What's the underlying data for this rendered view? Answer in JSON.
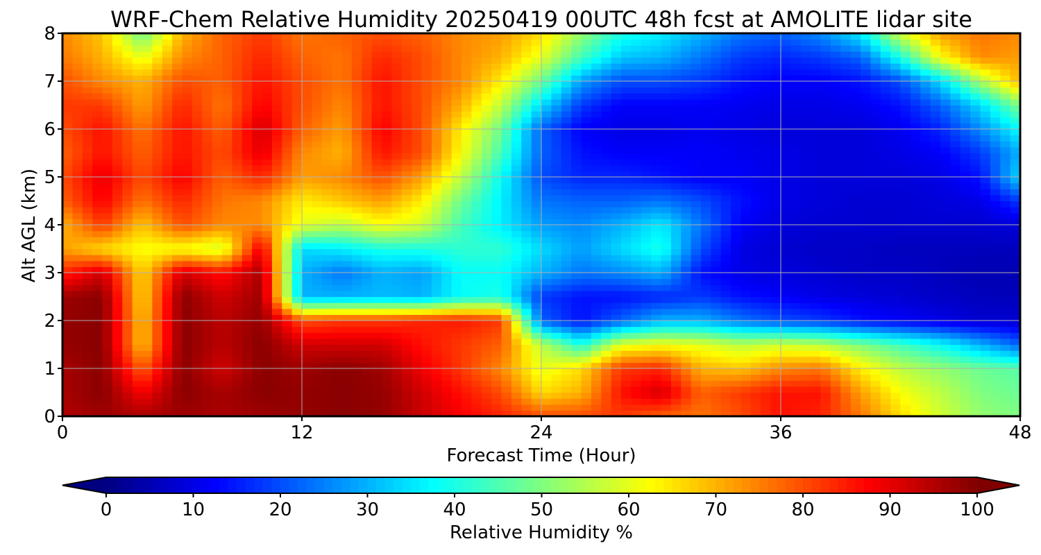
{
  "chart_data": {
    "type": "heatmap",
    "title": "WRF-Chem Relative Humidity 20250419 00UTC 48h fcst at AMOLITE lidar site",
    "xlabel": "Forecast Time (Hour)",
    "ylabel": "Alt AGL (km)",
    "xlim": [
      0,
      48
    ],
    "ylim": [
      0,
      8
    ],
    "x_ticks": [
      0,
      12,
      24,
      36,
      48
    ],
    "y_ticks": [
      0,
      1,
      2,
      3,
      4,
      5,
      6,
      7,
      8
    ],
    "grid": true,
    "colorbar": {
      "label": "Relative Humidity %",
      "range": [
        0,
        100
      ],
      "ticks": [
        0,
        10,
        20,
        30,
        40,
        50,
        60,
        70,
        80,
        90,
        100
      ],
      "colormap": "jet",
      "extend": "both",
      "orientation": "horizontal"
    },
    "x": [
      0,
      2,
      4,
      6,
      8,
      10,
      12,
      14,
      16,
      18,
      20,
      22,
      24,
      26,
      28,
      30,
      32,
      34,
      36,
      38,
      40,
      42,
      44,
      46,
      48
    ],
    "y": [
      0,
      0.5,
      1,
      1.5,
      2,
      2.5,
      3,
      3.5,
      4,
      4.5,
      5,
      5.5,
      6,
      6.5,
      7,
      7.5,
      8
    ],
    "z": [
      [
        95,
        97,
        96,
        97,
        96,
        97,
        98,
        99,
        98,
        93,
        88,
        84,
        80,
        80,
        82,
        78,
        76,
        80,
        86,
        84,
        76,
        66,
        58,
        52,
        50
      ],
      [
        96,
        99,
        88,
        99,
        96,
        99,
        98,
        99,
        98,
        92,
        86,
        80,
        66,
        70,
        86,
        92,
        78,
        82,
        86,
        86,
        72,
        62,
        56,
        50,
        48
      ],
      [
        96,
        99,
        78,
        99,
        92,
        99,
        97,
        99,
        97,
        89,
        82,
        74,
        60,
        66,
        82,
        84,
        70,
        68,
        74,
        76,
        64,
        56,
        52,
        48,
        46
      ],
      [
        98,
        99,
        68,
        99,
        94,
        99,
        92,
        92,
        92,
        86,
        82,
        78,
        56,
        40,
        60,
        62,
        60,
        56,
        58,
        56,
        50,
        44,
        38,
        30,
        22
      ],
      [
        98,
        99,
        68,
        99,
        94,
        98,
        80,
        82,
        82,
        84,
        85,
        82,
        22,
        14,
        22,
        30,
        30,
        24,
        20,
        18,
        14,
        12,
        10,
        8,
        8
      ],
      [
        97,
        99,
        66,
        99,
        92,
        97,
        30,
        30,
        31,
        30,
        38,
        40,
        18,
        14,
        14,
        16,
        18,
        14,
        12,
        10,
        9,
        8,
        7,
        6,
        6
      ],
      [
        84,
        92,
        66,
        92,
        86,
        96,
        30,
        24,
        30,
        28,
        38,
        38,
        30,
        24,
        26,
        30,
        14,
        10,
        9,
        8,
        7,
        7,
        6,
        5,
        5
      ],
      [
        72,
        66,
        62,
        62,
        58,
        90,
        34,
        36,
        40,
        40,
        42,
        42,
        34,
        28,
        34,
        40,
        20,
        10,
        8,
        7,
        7,
        6,
        6,
        6,
        6
      ],
      [
        70,
        82,
        68,
        80,
        74,
        74,
        60,
        56,
        62,
        58,
        44,
        36,
        28,
        26,
        30,
        36,
        24,
        12,
        9,
        8,
        8,
        8,
        8,
        8,
        9
      ],
      [
        78,
        88,
        76,
        84,
        76,
        74,
        64,
        68,
        72,
        64,
        48,
        36,
        24,
        22,
        22,
        24,
        20,
        14,
        10,
        9,
        8,
        8,
        9,
        10,
        18
      ],
      [
        80,
        90,
        80,
        88,
        78,
        84,
        72,
        74,
        80,
        72,
        56,
        38,
        20,
        16,
        16,
        14,
        12,
        12,
        10,
        9,
        9,
        9,
        10,
        14,
        34
      ],
      [
        78,
        86,
        78,
        86,
        80,
        90,
        74,
        70,
        86,
        80,
        62,
        44,
        22,
        14,
        12,
        12,
        12,
        11,
        10,
        9,
        9,
        10,
        12,
        18,
        30
      ],
      [
        80,
        86,
        76,
        86,
        78,
        92,
        78,
        72,
        88,
        80,
        64,
        48,
        22,
        12,
        10,
        10,
        11,
        10,
        9,
        9,
        9,
        11,
        16,
        26,
        38
      ],
      [
        82,
        82,
        72,
        84,
        76,
        88,
        80,
        74,
        86,
        80,
        70,
        56,
        34,
        18,
        12,
        12,
        12,
        11,
        10,
        10,
        11,
        14,
        22,
        34,
        50
      ],
      [
        80,
        74,
        70,
        80,
        78,
        86,
        80,
        76,
        86,
        80,
        74,
        64,
        48,
        28,
        20,
        20,
        18,
        14,
        12,
        12,
        14,
        20,
        34,
        54,
        70
      ],
      [
        76,
        70,
        60,
        74,
        78,
        84,
        78,
        76,
        84,
        80,
        74,
        70,
        60,
        44,
        32,
        30,
        24,
        18,
        16,
        18,
        22,
        40,
        62,
        74,
        72
      ],
      [
        74,
        68,
        48,
        70,
        78,
        82,
        76,
        78,
        80,
        78,
        74,
        72,
        66,
        52,
        40,
        36,
        30,
        24,
        22,
        26,
        36,
        58,
        72,
        76,
        74
      ]
    ]
  }
}
